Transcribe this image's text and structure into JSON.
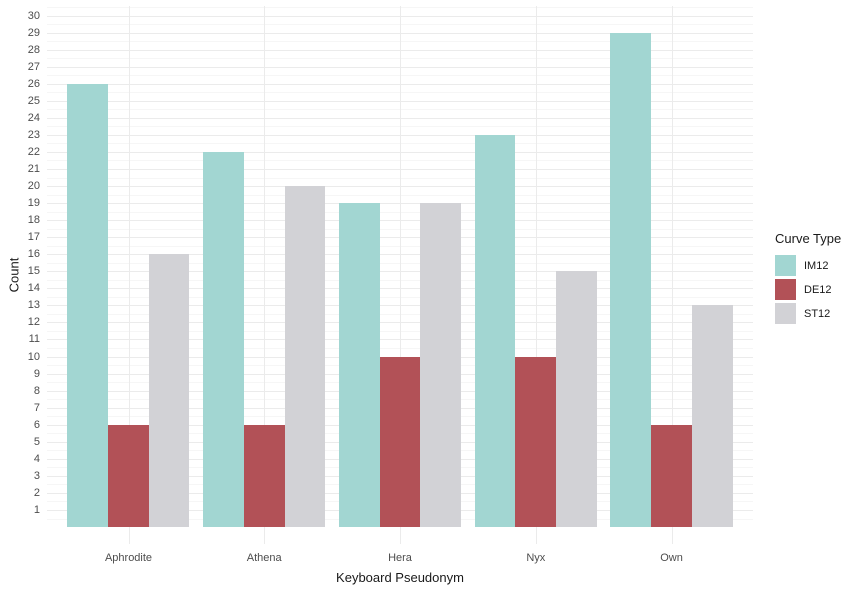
{
  "chart_data": {
    "type": "bar",
    "subtype": "grouped-vertical",
    "title": "",
    "xlabel": "Keyboard Pseudonym",
    "ylabel": "Count",
    "legend_title": "Curve Type",
    "legend_position": "right",
    "categories": [
      "Aphrodite",
      "Athena",
      "Hera",
      "Nyx",
      "Own"
    ],
    "series": [
      {
        "name": "IM12",
        "color": "#a2d6d2",
        "values": [
          26,
          22,
          19,
          23,
          29
        ]
      },
      {
        "name": "DE12",
        "color": "#b25157",
        "values": [
          6,
          6,
          10,
          10,
          6
        ]
      },
      {
        "name": "ST12",
        "color": "#d2d2d6",
        "values": [
          16,
          20,
          19,
          15,
          13
        ]
      }
    ],
    "ylim": [
      0,
      30
    ],
    "yticks": [
      1,
      2,
      3,
      4,
      5,
      6,
      7,
      8,
      9,
      10,
      11,
      12,
      13,
      14,
      15,
      16,
      17,
      18,
      19,
      20,
      21,
      22,
      23,
      24,
      25,
      26,
      27,
      28,
      29,
      30
    ],
    "grid": {
      "horizontal": "major-and-minor",
      "vertical": "major-at-category-centers"
    },
    "colors": {
      "background": "#ffffff",
      "grid_major": "#ebebeb",
      "grid_minor": "#f6f6f6",
      "tick_text": "#4d4d4d",
      "title_text": "#1a1a1a"
    }
  }
}
